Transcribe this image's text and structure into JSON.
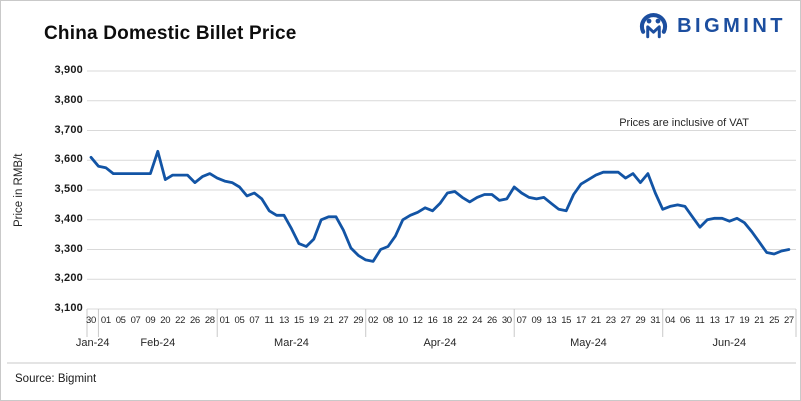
{
  "header": {
    "title": "China Domestic Billet Price",
    "brand": "BIGMINT",
    "brand_color": "#1c4e9f"
  },
  "annotation": "Prices are inclusive of VAT",
  "source": "Source: Bigmint",
  "chart_data": {
    "type": "line",
    "title": "China Domestic Billet Price",
    "ylabel": "Price in RMB/t",
    "ylim": [
      3100,
      3900
    ],
    "y_tick_step": 100,
    "y_ticks": [
      "3,900",
      "3,800",
      "3,700",
      "3,600",
      "3,500",
      "3,400",
      "3,300",
      "3,200",
      "3,100"
    ],
    "grid": "horizontal-only",
    "legend": "none",
    "line_color": "#1254a5",
    "grid_color": "#d9d9d9",
    "axis_line_color": "#c9c9c9",
    "months": [
      {
        "label": "Jan-24",
        "ticks": [
          "30"
        ]
      },
      {
        "label": "Feb-24",
        "ticks": [
          "01",
          "05",
          "07",
          "09",
          "20",
          "22",
          "26",
          "28"
        ]
      },
      {
        "label": "Mar-24",
        "ticks": [
          "01",
          "05",
          "07",
          "11",
          "13",
          "15",
          "19",
          "21",
          "27",
          "29"
        ]
      },
      {
        "label": "Apr-24",
        "ticks": [
          "02",
          "08",
          "10",
          "12",
          "16",
          "18",
          "22",
          "24",
          "26",
          "30"
        ]
      },
      {
        "label": "May-24",
        "ticks": [
          "07",
          "09",
          "13",
          "15",
          "17",
          "21",
          "23",
          "27",
          "29",
          "31"
        ]
      },
      {
        "label": "Jun-24",
        "ticks": [
          "04",
          "06",
          "11",
          "13",
          "17",
          "19",
          "21",
          "25",
          "27"
        ]
      }
    ],
    "points_per_tick_gap": 2,
    "values": [
      3610,
      3580,
      3575,
      3555,
      3555,
      3555,
      3555,
      3555,
      3555,
      3630,
      3535,
      3550,
      3550,
      3550,
      3525,
      3545,
      3555,
      3540,
      3530,
      3525,
      3510,
      3480,
      3490,
      3470,
      3430,
      3415,
      3415,
      3370,
      3320,
      3310,
      3335,
      3400,
      3410,
      3410,
      3365,
      3305,
      3280,
      3265,
      3260,
      3300,
      3310,
      3345,
      3400,
      3415,
      3425,
      3440,
      3430,
      3455,
      3490,
      3495,
      3475,
      3460,
      3475,
      3485,
      3485,
      3465,
      3470,
      3510,
      3490,
      3475,
      3470,
      3475,
      3455,
      3435,
      3430,
      3485,
      3520,
      3535,
      3550,
      3560,
      3560,
      3560,
      3540,
      3555,
      3525,
      3555,
      3490,
      3435,
      3445,
      3450,
      3445,
      3410,
      3375,
      3400,
      3405,
      3405,
      3395,
      3405,
      3390,
      3360,
      3325,
      3290,
      3285,
      3295,
      3300
    ]
  }
}
